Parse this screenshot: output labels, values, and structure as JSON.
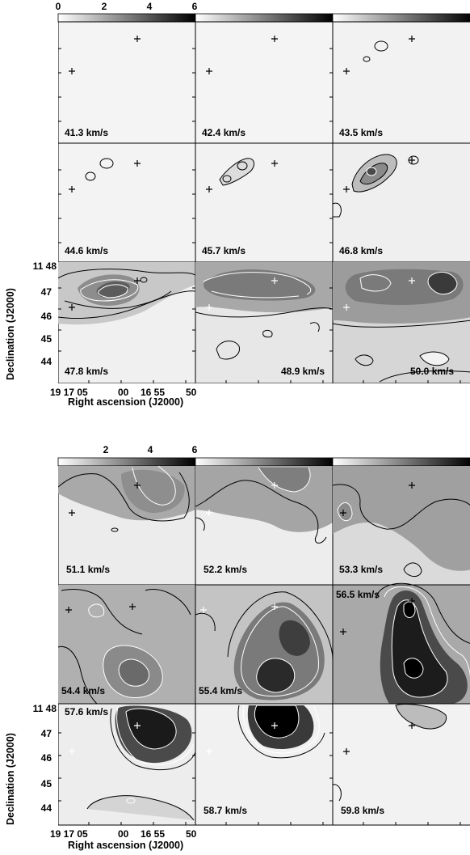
{
  "figure": {
    "colorbar_top": {
      "tick_labels": [
        "0",
        "2",
        "4",
        "6"
      ],
      "range": [
        0,
        6.6
      ]
    },
    "colorbar_bottom": {
      "tick_labels": [
        "2",
        "4",
        "6"
      ],
      "range": [
        0,
        6.6
      ]
    },
    "y_axis_label": "Declination (J2000)",
    "x_axis_label": "Right ascension (J2000)",
    "dec_tick_labels": [
      "11 48",
      "47",
      "46",
      "45",
      "44"
    ],
    "ra_tick_labels": [
      "19 17 05",
      "00",
      "16 55",
      "50"
    ],
    "top_panels": [
      {
        "velocity": "41.3 km/s",
        "intensity": 0.2
      },
      {
        "velocity": "42.4 km/s",
        "intensity": 0.2
      },
      {
        "velocity": "43.5 km/s",
        "intensity": 0.4
      },
      {
        "velocity": "44.6 km/s",
        "intensity": 0.6
      },
      {
        "velocity": "45.7 km/s",
        "intensity": 0.8
      },
      {
        "velocity": "46.8 km/s",
        "intensity": 1.2
      },
      {
        "velocity": "47.8 km/s",
        "intensity": 2.6
      },
      {
        "velocity": "48.9 km/s",
        "intensity": 2.4
      },
      {
        "velocity": "50.0 km/s",
        "intensity": 2.3
      }
    ],
    "bottom_panels": [
      {
        "velocity": "51.1 km/s",
        "intensity": 2.0
      },
      {
        "velocity": "52.2 km/s",
        "intensity": 2.0
      },
      {
        "velocity": "53.3 km/s",
        "intensity": 1.8
      },
      {
        "velocity": "54.4 km/s",
        "intensity": 2.3
      },
      {
        "velocity": "55.4 km/s",
        "intensity": 3.4
      },
      {
        "velocity": "56.5 km/s",
        "intensity": 4.6
      },
      {
        "velocity": "57.6 km/s",
        "intensity": 4.2
      },
      {
        "velocity": "58.7 km/s",
        "intensity": 2.6
      },
      {
        "velocity": "59.8 km/s",
        "intensity": 0.9
      }
    ]
  }
}
